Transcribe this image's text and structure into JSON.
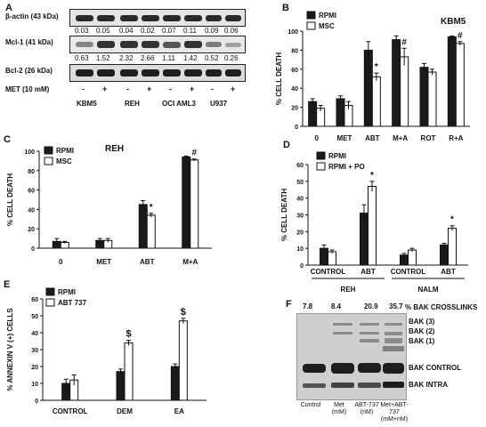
{
  "panelA": {
    "label": "A",
    "rows": [
      {
        "name": "β-actin (43 kDa)",
        "values": [
          "0.03",
          "0.05",
          "0.04",
          "0.02",
          "0.07",
          "0.11",
          "0.09",
          "0.06"
        ]
      },
      {
        "name": "Mcl-1 (41 kDa)",
        "values": [
          "0.63",
          "1.52",
          "2.32",
          "2.66",
          "1.11",
          "1.42",
          "0.52",
          "0.26"
        ]
      },
      {
        "name": "Bcl-2 (26 kDa)"
      }
    ],
    "treatment": "MET (10 mM)",
    "signs": [
      "-",
      "+",
      "-",
      "+",
      "-",
      "+",
      "-",
      "+"
    ],
    "cell_lines": [
      "KBM5",
      "REH",
      "OCI AML3",
      "U937"
    ]
  },
  "panelF": {
    "label": "F",
    "percent_title": "% BAK CROSSLINKS",
    "percents": [
      "7.8",
      "8.4",
      "20.9",
      "35.7"
    ],
    "band_labels": [
      "BAK (3)",
      "BAK (2)",
      "BAK (1)",
      "BAK CONTROL",
      "BAK INTRA"
    ],
    "lanes": [
      "Control",
      "Met\n(mM)",
      "ABT-737\n(nM)",
      "Met+ABT-\n737\n(mM+nM)"
    ]
  },
  "chart_data": [
    {
      "id": "B",
      "label": "B",
      "type": "bar",
      "title": "KBM5",
      "ylabel": "% CELL DEATH",
      "xlabel": "",
      "ylim": [
        0,
        100
      ],
      "yticks": [
        0,
        20,
        40,
        60,
        80,
        100
      ],
      "categories": [
        "0",
        "MET",
        "ABT",
        "M+A",
        "ROT",
        "R+A"
      ],
      "series": [
        {
          "name": "RPMI",
          "color": "#1a1a1a",
          "values": [
            26,
            29,
            80,
            91,
            62,
            94
          ],
          "errors": [
            3,
            3,
            9,
            4,
            4,
            1
          ]
        },
        {
          "name": "MSC",
          "color": "#ffffff",
          "values": [
            19,
            22,
            52,
            73,
            57,
            87
          ],
          "errors": [
            3,
            4,
            4,
            9,
            3,
            2
          ]
        }
      ],
      "annotations": [
        {
          "category": "ABT",
          "series": "MSC",
          "text": "*"
        },
        {
          "category": "M+A",
          "series": "MSC",
          "text": "#"
        },
        {
          "category": "R+A",
          "series": "MSC",
          "text": "#"
        }
      ]
    },
    {
      "id": "C",
      "label": "C",
      "type": "bar",
      "title": "REH",
      "ylabel": "% CELL DEATH",
      "xlabel": "",
      "ylim": [
        0,
        100
      ],
      "yticks": [
        0,
        20,
        40,
        60,
        80,
        100
      ],
      "categories": [
        "0",
        "MET",
        "ABT",
        "M+A"
      ],
      "series": [
        {
          "name": "RPMI",
          "color": "#1a1a1a",
          "values": [
            7,
            8,
            45,
            94
          ],
          "errors": [
            3,
            2,
            4,
            1
          ]
        },
        {
          "name": "MSC",
          "color": "#ffffff",
          "values": [
            6,
            8,
            34,
            91
          ],
          "errors": [
            1,
            2,
            2,
            1
          ]
        }
      ],
      "annotations": [
        {
          "category": "ABT",
          "series": "MSC",
          "text": "*"
        },
        {
          "category": "M+A",
          "series": "MSC",
          "text": "#"
        }
      ]
    },
    {
      "id": "D",
      "label": "D",
      "type": "bar",
      "title": "",
      "ylabel": "% CELL DEATH",
      "xlabel": "",
      "ylim": [
        0,
        60
      ],
      "yticks": [
        0,
        10,
        20,
        30,
        40,
        50,
        60
      ],
      "categories": [
        "CONTROL",
        "ABT",
        "CONTROL",
        "ABT"
      ],
      "groups": [
        {
          "name": "REH",
          "categories": [
            0,
            1
          ]
        },
        {
          "name": "NALM",
          "categories": [
            2,
            3
          ]
        }
      ],
      "series": [
        {
          "name": "RPMI",
          "color": "#1a1a1a",
          "values": [
            10,
            31,
            6,
            12
          ],
          "errors": [
            2,
            5,
            1,
            1
          ]
        },
        {
          "name": "RPMI + PO",
          "color": "#ffffff",
          "values": [
            8,
            47,
            9,
            22
          ],
          "errors": [
            1,
            3,
            1,
            1.5
          ]
        }
      ],
      "annotations": [
        {
          "category": 1,
          "series": "RPMI + PO",
          "text": "*"
        },
        {
          "category": 3,
          "series": "RPMI + PO",
          "text": "*"
        }
      ]
    },
    {
      "id": "E",
      "label": "E",
      "type": "bar",
      "title": "",
      "ylabel": "% ANNEXIN V (+) CELLS",
      "xlabel": "",
      "ylim": [
        0,
        60
      ],
      "yticks": [
        0,
        10,
        20,
        30,
        40,
        50,
        60
      ],
      "categories": [
        "CONTROL",
        "DEM",
        "EA"
      ],
      "series": [
        {
          "name": "RPMI",
          "color": "#1a1a1a",
          "values": [
            10,
            17,
            20
          ],
          "errors": [
            2.5,
            1.5,
            1.5
          ]
        },
        {
          "name": "ABT 737",
          "color": "#ffffff",
          "values": [
            12,
            34,
            47
          ],
          "errors": [
            3,
            1.5,
            1.5
          ]
        }
      ],
      "annotations": [
        {
          "category": "DEM",
          "series": "ABT 737",
          "text": "$"
        },
        {
          "category": "EA",
          "series": "ABT 737",
          "text": "$"
        }
      ]
    }
  ]
}
